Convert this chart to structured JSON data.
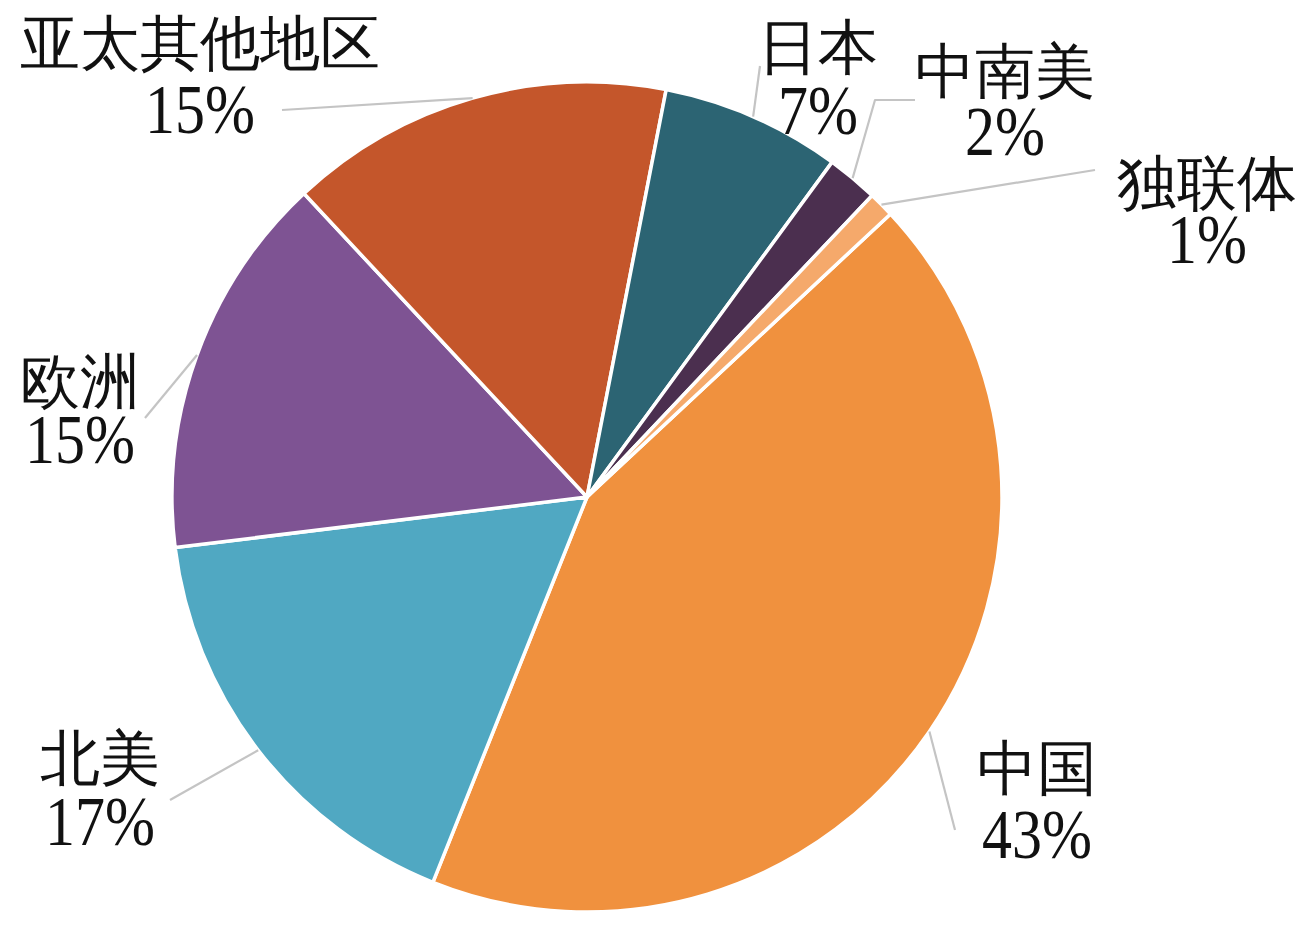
{
  "chart_data": {
    "type": "pie",
    "categories": [
      "中国",
      "北美",
      "欧洲",
      "亚太其他地区",
      "日本",
      "中南美",
      "独联体"
    ],
    "values": [
      43,
      17,
      15,
      15,
      7,
      2,
      1
    ],
    "colors": [
      "#f0913e",
      "#50a8c2",
      "#7e5393",
      "#c4562b",
      "#2c6473",
      "#4b2f4f",
      "#f5a96b"
    ],
    "value_labels": [
      "43%",
      "17%",
      "15%",
      "15%",
      "7%",
      "2%",
      "1%"
    ]
  }
}
